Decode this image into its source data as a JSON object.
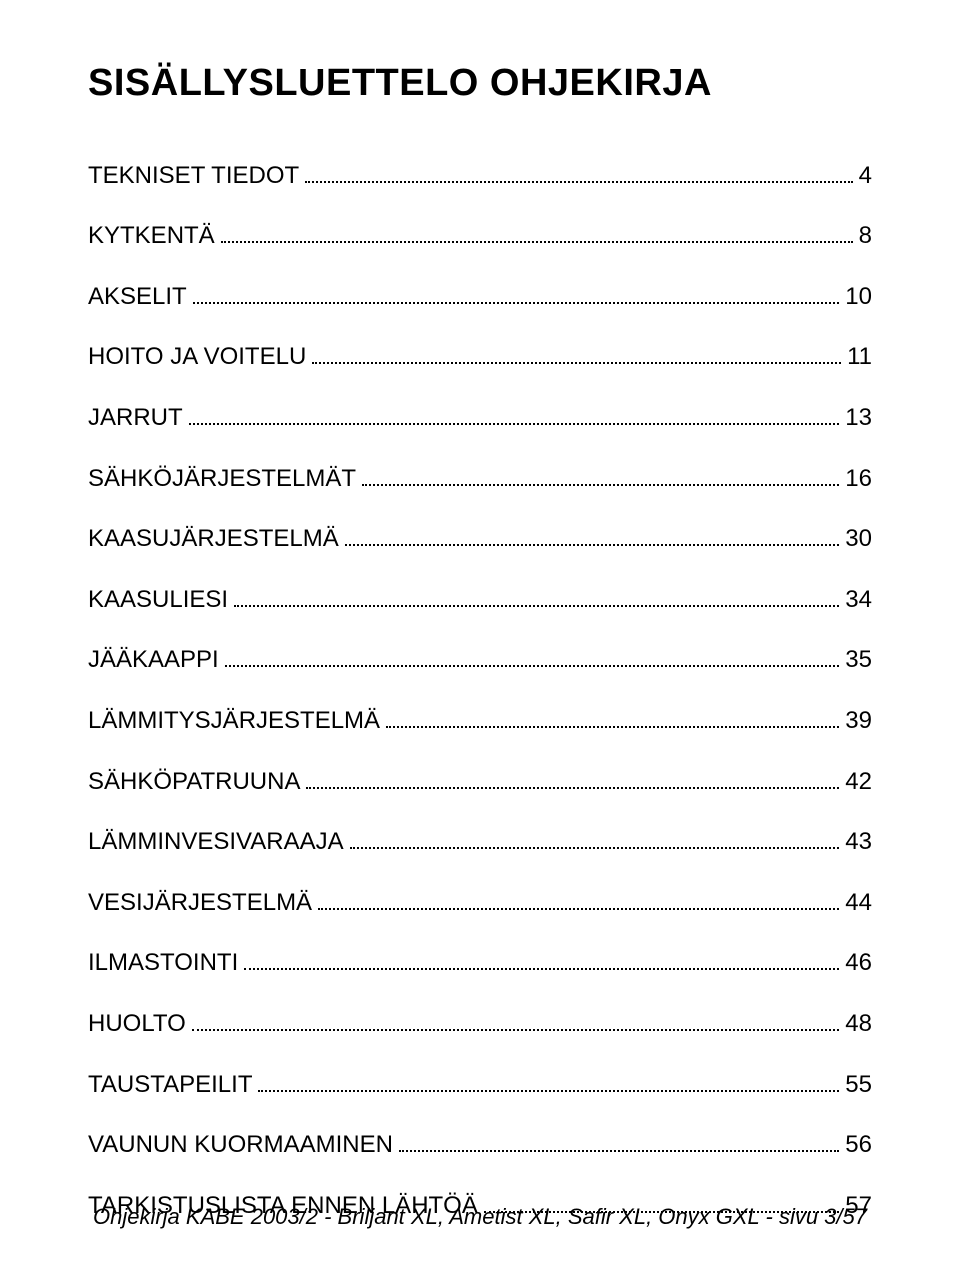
{
  "title": "SISÄLLYSLUETTELO OHJEKIRJA",
  "title_fontsize": 38,
  "title_fontweight": 900,
  "entry_fontsize": 24,
  "footer_fontsize": 22,
  "background_color": "#ffffff",
  "text_color": "#000000",
  "toc": [
    {
      "label": "TEKNISET TIEDOT",
      "page": "4"
    },
    {
      "label": "KYTKENTÄ",
      "page": "8"
    },
    {
      "label": "AKSELIT",
      "page": "10"
    },
    {
      "label": "HOITO JA VOITELU",
      "page": "11"
    },
    {
      "label": "JARRUT",
      "page": "13"
    },
    {
      "label": "SÄHKÖJÄRJESTELMÄT",
      "page": "16"
    },
    {
      "label": "KAASUJÄRJESTELMÄ",
      "page": "30"
    },
    {
      "label": "KAASULIESI",
      "page": "34"
    },
    {
      "label": "JÄÄKAAPPI",
      "page": "35"
    },
    {
      "label": "LÄMMITYSJÄRJESTELMÄ",
      "page": "39"
    },
    {
      "label": "SÄHKÖPATRUUNA",
      "page": "42"
    },
    {
      "label": "LÄMMINVESIVARAAJA",
      "page": "43"
    },
    {
      "label": "VESIJÄRJESTELMÄ",
      "page": "44"
    },
    {
      "label": "ILMASTOINTI",
      "page": "46"
    },
    {
      "label": "HUOLTO",
      "page": "48"
    },
    {
      "label": "TAUSTAPEILIT",
      "page": "55"
    },
    {
      "label": "VAUNUN KUORMAAMINEN",
      "page": "56"
    },
    {
      "label": "TARKISTUSLISTA ENNEN LÄHTÖÄ",
      "page": "57"
    }
  ],
  "footer": "Ohjekirja KABE 2003/2 - Briljant XL, Ametist XL, Safir XL, Onyx GXL - sivu 3/57"
}
